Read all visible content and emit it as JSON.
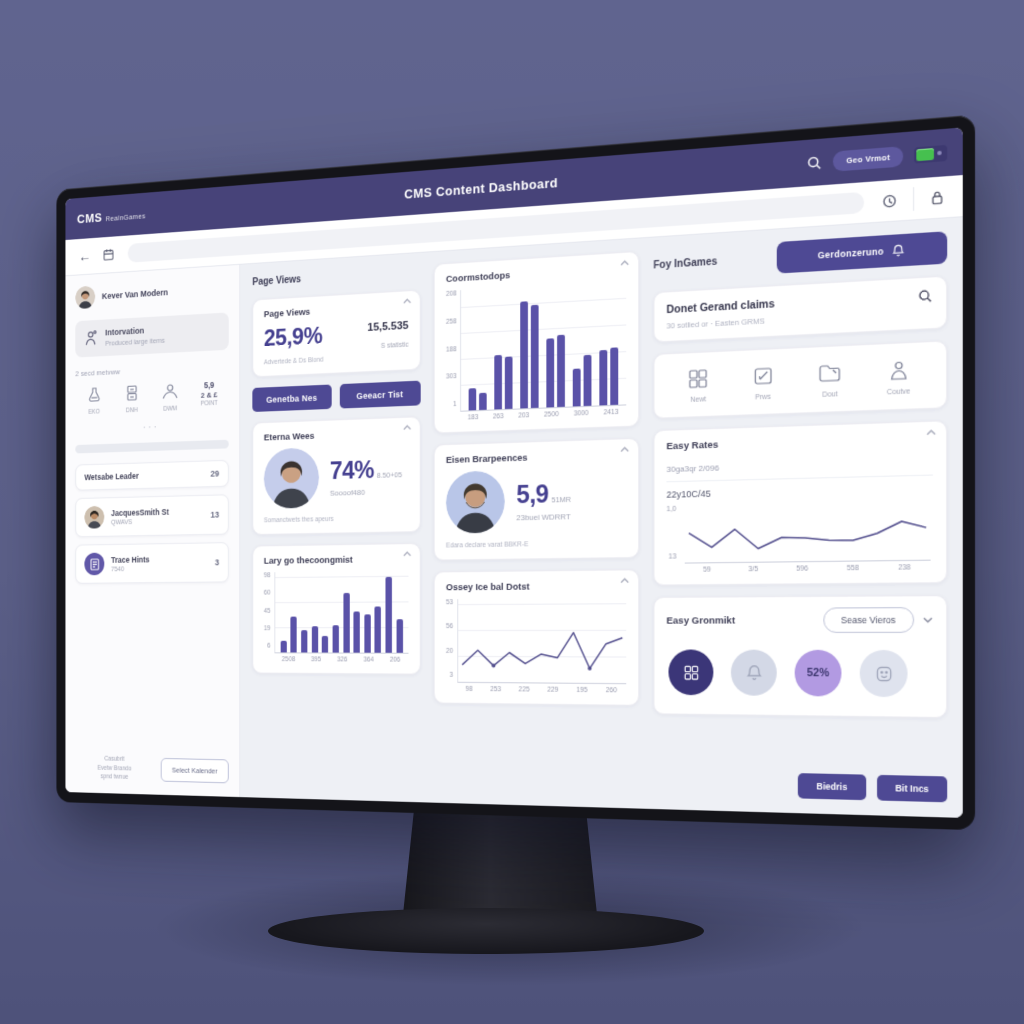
{
  "appbar": {
    "logo": "CMS",
    "logo_suffix": "RealnGames",
    "title": "CMS Content Dashboard",
    "pill_label": "Geo Vrmot"
  },
  "sidebar": {
    "user_name": "Kever Van Modern",
    "nav": {
      "title": "Intorvation",
      "subtitle": "Produced large items"
    },
    "section_label": "2 secd metvww",
    "quick": {
      "items": [
        {
          "label": "EKO"
        },
        {
          "label": "DNH"
        },
        {
          "label": "DWM"
        }
      ],
      "stat": {
        "line1": "5,9",
        "line2": "2 & £",
        "label": "POINT"
      }
    },
    "dots": "···",
    "lists": [
      {
        "title": "Wetsabe Leader",
        "subtitle": "",
        "count": "29"
      },
      {
        "title": "JacquesSmith St",
        "subtitle": "QWAVS",
        "count": "13"
      },
      {
        "title": "Trace Hints",
        "subtitle": "7540",
        "count": "3"
      }
    ],
    "footer_note": [
      "Casubrit",
      "Evetw Brando",
      "spnd twnue"
    ],
    "footer_button": "Select Kalender"
  },
  "main": {
    "section_label": "Page Views",
    "page_views_card": {
      "title": "Page Views",
      "big": "25,9%",
      "caption": "Advertede & Ds Blond",
      "side_value": "15,5.535",
      "side_caption": "S statistic"
    },
    "action_buttons": {
      "left": "Genetba Nes",
      "right": "Geeacr Tist"
    },
    "conversions_card": {
      "title": "Coormstodops"
    },
    "eternal_card": {
      "title": "Eterna Wees",
      "big": "74%",
      "side": "8.50+05",
      "sub": "Soooof480",
      "caption": "Somanctwets thes apeurs"
    },
    "experience_card": {
      "title": "Eisen Brarpeences",
      "big": "5,9",
      "side": "51MR",
      "sub": "23buei WDRRT",
      "caption": "Edara declare varat BBKR-E"
    },
    "bottom_bars_card": {
      "title": "Lary go thecoongmist"
    },
    "bottom_line_card": {
      "title": "Ossey Ice bal Dotst"
    }
  },
  "right": {
    "label": "Foy InGames",
    "primary_button": "Gerdonzeruno",
    "claims_card": {
      "title": "Donet Gerand claims",
      "subtitle": "30 sotlied or · Easten GRMS"
    },
    "shortcuts": [
      {
        "icon": "grid-icon",
        "label": "Newt"
      },
      {
        "icon": "edit-icon",
        "label": "Prws"
      },
      {
        "icon": "folder-icon",
        "label": "Dout"
      },
      {
        "icon": "person-icon",
        "label": "Coutve"
      }
    ],
    "rates_card": {
      "title": "Easy Rates",
      "line1": "30ga3qr 2/096",
      "line2": "22y10C/45"
    },
    "easy_grow_card": {
      "title": "Easy Gronmikt",
      "pill": "Sease Vieros",
      "circle_value": "52%"
    },
    "bottom_buttons": {
      "left": "Biedris",
      "right": "Bit Incs"
    }
  },
  "colors": {
    "header_purple": "#474379",
    "accent_purple": "#4e4994",
    "bar_purple": "#5a52a8",
    "line_purple": "#55518f",
    "toggle_green": "#46c04f",
    "content_bg": "#eef0f5"
  },
  "chart_data": {
    "conversions": {
      "type": "bar",
      "grouped": true,
      "title": "Coormstodops",
      "yticks": [
        "208",
        "258",
        "188",
        "303",
        "1"
      ],
      "xticks": [
        "183",
        "263",
        "203",
        "2500",
        "3000",
        "2413"
      ],
      "groups": [
        [
          18,
          14
        ],
        [
          45,
          43
        ],
        [
          88,
          84
        ],
        [
          56,
          59
        ],
        [
          31,
          41
        ],
        [
          45,
          46
        ]
      ],
      "ylim": [
        0,
        100
      ],
      "grid": true
    },
    "page_rates": {
      "type": "line",
      "title": "Easy Rates",
      "ytop": "1,0",
      "ybottom": "13",
      "xticks": [
        "59",
        "3/5",
        "596",
        "558",
        "238"
      ],
      "values": [
        52,
        22,
        58,
        18,
        40,
        38,
        33,
        32,
        45,
        68,
        55
      ],
      "ylim": [
        0,
        100
      ],
      "grid": false
    },
    "bottom_bars": {
      "type": "bar",
      "title": "Lary go thecoongmist",
      "yticks": [
        "98",
        "60",
        "45",
        "19",
        "6"
      ],
      "xticks": [
        "2508",
        "395",
        "326",
        "364",
        "206"
      ],
      "values": [
        14,
        44,
        28,
        32,
        21,
        34,
        74,
        51,
        47,
        57,
        93,
        41
      ],
      "ylim": [
        0,
        100
      ],
      "grid": true
    },
    "bottom_line": {
      "type": "line",
      "title": "Ossey Ice bal Dotst",
      "yticks": [
        "53",
        "56",
        "20",
        "3"
      ],
      "xticks": [
        "98",
        "253",
        "225",
        "229",
        "195",
        "260"
      ],
      "values": [
        18,
        38,
        17,
        35,
        20,
        33,
        28,
        62,
        14,
        47,
        55
      ],
      "marker_indices": [
        2,
        8
      ],
      "ylim": [
        0,
        100
      ],
      "grid": true
    }
  }
}
